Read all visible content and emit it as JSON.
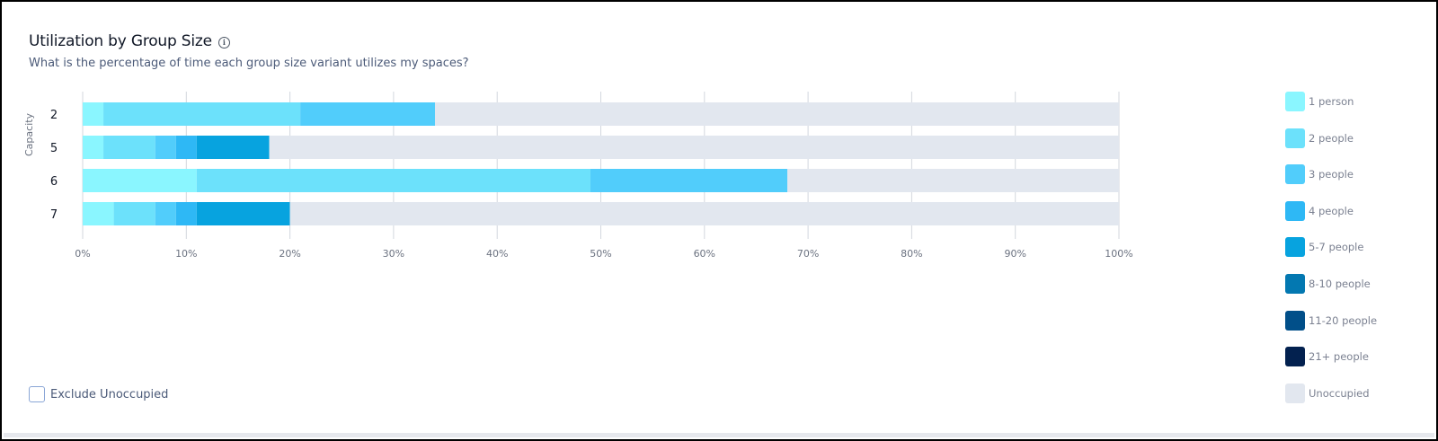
{
  "header": {
    "title": "Utilization by Group Size",
    "subtitle": "What is the percentage of time each group size variant utilizes my spaces?"
  },
  "icons": {
    "info": "info-circle-icon"
  },
  "exclude_unoccupied": {
    "label": "Exclude Unoccupied",
    "checked": false
  },
  "chart_data": {
    "type": "bar",
    "orientation": "horizontal",
    "stacked": true,
    "ylabel": "Capacity",
    "categories": [
      "2",
      "5",
      "6",
      "7"
    ],
    "xlim": [
      0,
      100
    ],
    "x_ticks": [
      "0%",
      "10%",
      "20%",
      "30%",
      "40%",
      "50%",
      "60%",
      "70%",
      "80%",
      "90%",
      "100%"
    ],
    "grid": true,
    "legend_position": "right",
    "series": [
      {
        "name": "1 person",
        "color": "#8af6ff",
        "values": [
          2,
          2,
          11,
          3
        ]
      },
      {
        "name": "2 people",
        "color": "#6ce1fb",
        "values": [
          19,
          5,
          38,
          4
        ]
      },
      {
        "name": "3 people",
        "color": "#51cdfb",
        "values": [
          13,
          2,
          19,
          2
        ]
      },
      {
        "name": "4 people",
        "color": "#2eb8f5",
        "values": [
          0,
          2,
          0,
          2
        ]
      },
      {
        "name": "5-7 people",
        "color": "#07a3df",
        "values": [
          0,
          7,
          0,
          9
        ]
      },
      {
        "name": "8-10 people",
        "color": "#0378b1",
        "values": [
          0,
          0,
          0,
          0
        ]
      },
      {
        "name": "11-20 people",
        "color": "#014f89",
        "values": [
          0,
          0,
          0,
          0
        ]
      },
      {
        "name": "21+ people",
        "color": "#03214f",
        "values": [
          0,
          0,
          0,
          0
        ]
      },
      {
        "name": "Unoccupied",
        "color": "#e2e7ef",
        "values": [
          66,
          82,
          32,
          80
        ]
      }
    ]
  }
}
